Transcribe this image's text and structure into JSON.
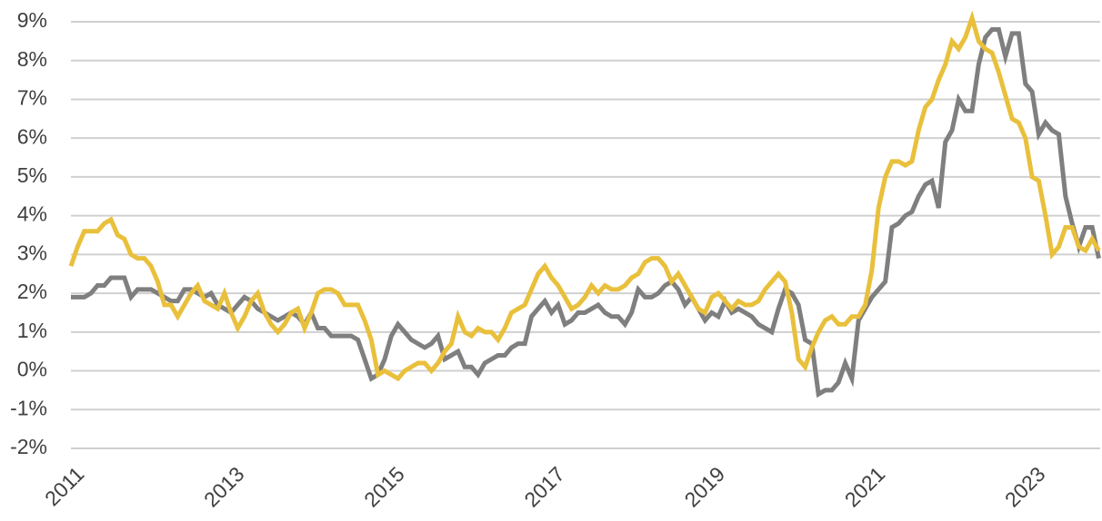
{
  "chart_data": {
    "type": "line",
    "x": [
      2011,
      2011.083,
      2011.167,
      2011.25,
      2011.333,
      2011.417,
      2011.5,
      2011.583,
      2011.667,
      2011.75,
      2011.833,
      2011.917,
      2012,
      2012.083,
      2012.167,
      2012.25,
      2012.333,
      2012.417,
      2012.5,
      2012.583,
      2012.667,
      2012.75,
      2012.833,
      2012.917,
      2013,
      2013.083,
      2013.167,
      2013.25,
      2013.333,
      2013.417,
      2013.5,
      2013.583,
      2013.667,
      2013.75,
      2013.833,
      2013.917,
      2014,
      2014.083,
      2014.167,
      2014.25,
      2014.333,
      2014.417,
      2014.5,
      2014.583,
      2014.667,
      2014.75,
      2014.833,
      2014.917,
      2015,
      2015.083,
      2015.167,
      2015.25,
      2015.333,
      2015.417,
      2015.5,
      2015.583,
      2015.667,
      2015.75,
      2015.833,
      2015.917,
      2016,
      2016.083,
      2016.167,
      2016.25,
      2016.333,
      2016.417,
      2016.5,
      2016.583,
      2016.667,
      2016.75,
      2016.833,
      2016.917,
      2017,
      2017.083,
      2017.167,
      2017.25,
      2017.333,
      2017.417,
      2017.5,
      2017.583,
      2017.667,
      2017.75,
      2017.833,
      2017.917,
      2018,
      2018.083,
      2018.167,
      2018.25,
      2018.333,
      2018.417,
      2018.5,
      2018.583,
      2018.667,
      2018.75,
      2018.833,
      2018.917,
      2019,
      2019.083,
      2019.167,
      2019.25,
      2019.333,
      2019.417,
      2019.5,
      2019.583,
      2019.667,
      2019.75,
      2019.833,
      2019.917,
      2020,
      2020.083,
      2020.167,
      2020.25,
      2020.333,
      2020.417,
      2020.5,
      2020.583,
      2020.667,
      2020.75,
      2020.833,
      2020.917,
      2021,
      2021.083,
      2021.167,
      2021.25,
      2021.333,
      2021.417,
      2021.5,
      2021.583,
      2021.667,
      2021.75,
      2021.833,
      2021.917,
      2022,
      2022.083,
      2022.167,
      2022.25,
      2022.333,
      2022.417,
      2022.5,
      2022.583,
      2022.667,
      2022.75,
      2022.833,
      2022.917,
      2023,
      2023.083,
      2023.167,
      2023.25,
      2023.333,
      2023.417,
      2023.5,
      2023.583,
      2023.667,
      2023.75,
      2023.833
    ],
    "series": [
      {
        "color": "#7f7f7f",
        "values": [
          1.9,
          1.9,
          1.9,
          2.0,
          2.2,
          2.2,
          2.4,
          2.4,
          2.4,
          1.9,
          2.1,
          2.1,
          2.1,
          2.0,
          1.9,
          1.8,
          1.8,
          2.1,
          2.1,
          2.0,
          1.9,
          2.0,
          1.7,
          1.6,
          1.5,
          1.7,
          1.9,
          1.8,
          1.6,
          1.5,
          1.4,
          1.3,
          1.4,
          1.5,
          1.4,
          1.2,
          1.5,
          1.1,
          1.1,
          0.9,
          0.9,
          0.9,
          0.9,
          0.8,
          0.3,
          -0.2,
          -0.1,
          0.3,
          0.9,
          1.2,
          1.0,
          0.8,
          0.7,
          0.6,
          0.7,
          0.9,
          0.3,
          0.4,
          0.5,
          0.1,
          0.1,
          -0.1,
          0.2,
          0.3,
          0.4,
          0.4,
          0.6,
          0.7,
          0.7,
          1.4,
          1.6,
          1.8,
          1.5,
          1.7,
          1.2,
          1.3,
          1.5,
          1.5,
          1.6,
          1.7,
          1.5,
          1.4,
          1.4,
          1.2,
          1.5,
          2.1,
          1.9,
          1.9,
          2.0,
          2.2,
          2.3,
          2.1,
          1.7,
          1.9,
          1.6,
          1.3,
          1.5,
          1.4,
          1.8,
          1.5,
          1.6,
          1.5,
          1.4,
          1.2,
          1.1,
          1.0,
          1.6,
          2.1,
          2.0,
          1.7,
          0.8,
          0.7,
          -0.6,
          -0.5,
          -0.5,
          -0.3,
          0.2,
          -0.2,
          1.3,
          1.6,
          1.9,
          2.1,
          2.3,
          3.7,
          3.8,
          4.0,
          4.1,
          4.5,
          4.8,
          4.9,
          4.2,
          5.9,
          6.2,
          7.0,
          6.7,
          6.7,
          7.9,
          8.6,
          8.8,
          8.8,
          8.1,
          8.7,
          8.7,
          7.4,
          7.2,
          6.1,
          6.4,
          6.2,
          6.1,
          4.5,
          3.8,
          3.2,
          3.7,
          3.7,
          2.9
        ]
      },
      {
        "color": "#e9c03c",
        "values": [
          2.7,
          3.2,
          3.6,
          3.6,
          3.6,
          3.8,
          3.9,
          3.5,
          3.4,
          3.0,
          2.9,
          2.9,
          2.7,
          2.3,
          1.7,
          1.7,
          1.4,
          1.7,
          2.0,
          2.2,
          1.8,
          1.7,
          1.6,
          2.0,
          1.5,
          1.1,
          1.4,
          1.8,
          2.0,
          1.5,
          1.2,
          1.0,
          1.2,
          1.5,
          1.6,
          1.1,
          1.5,
          2.0,
          2.1,
          2.1,
          2.0,
          1.7,
          1.7,
          1.7,
          1.3,
          0.8,
          -0.1,
          0.0,
          -0.1,
          -0.2,
          0.0,
          0.1,
          0.2,
          0.2,
          0.0,
          0.2,
          0.5,
          0.7,
          1.4,
          1.0,
          0.9,
          1.1,
          1.0,
          1.0,
          0.8,
          1.1,
          1.5,
          1.6,
          1.7,
          2.1,
          2.5,
          2.7,
          2.4,
          2.2,
          1.9,
          1.6,
          1.7,
          1.9,
          2.2,
          2.0,
          2.2,
          2.1,
          2.1,
          2.2,
          2.4,
          2.5,
          2.8,
          2.9,
          2.9,
          2.7,
          2.3,
          2.5,
          2.2,
          1.9,
          1.6,
          1.5,
          1.9,
          2.0,
          1.8,
          1.6,
          1.8,
          1.7,
          1.7,
          1.8,
          2.1,
          2.3,
          2.5,
          2.3,
          1.5,
          0.3,
          0.1,
          0.6,
          1.0,
          1.3,
          1.4,
          1.2,
          1.2,
          1.4,
          1.4,
          1.7,
          2.6,
          4.2,
          5.0,
          5.4,
          5.4,
          5.3,
          5.4,
          6.2,
          6.8,
          7.0,
          7.5,
          7.9,
          8.5,
          8.3,
          8.6,
          9.1,
          8.5,
          8.3,
          8.2,
          7.7,
          7.1,
          6.5,
          6.4,
          6.0,
          5.0,
          4.9,
          4.0,
          3.0,
          3.2,
          3.7,
          3.7,
          3.2,
          3.1,
          3.4,
          3.1
        ]
      }
    ],
    "xlim": [
      2011,
      2023.85
    ],
    "xticks": [
      2011,
      2013,
      2015,
      2017,
      2019,
      2021,
      2023
    ],
    "ylim": [
      -2,
      9
    ],
    "yticks": [
      {
        "value": -2,
        "label": "-2%"
      },
      {
        "value": -1,
        "label": "-1%"
      },
      {
        "value": 0,
        "label": "0%"
      },
      {
        "value": 1,
        "label": "1%"
      },
      {
        "value": 2,
        "label": "2%"
      },
      {
        "value": 3,
        "label": "3%"
      },
      {
        "value": 4,
        "label": "4%"
      },
      {
        "value": 5,
        "label": "5%"
      },
      {
        "value": 6,
        "label": "6%"
      },
      {
        "value": 7,
        "label": "7%"
      },
      {
        "value": 8,
        "label": "8%"
      },
      {
        "value": 9,
        "label": "9%"
      }
    ],
    "grid": true
  }
}
